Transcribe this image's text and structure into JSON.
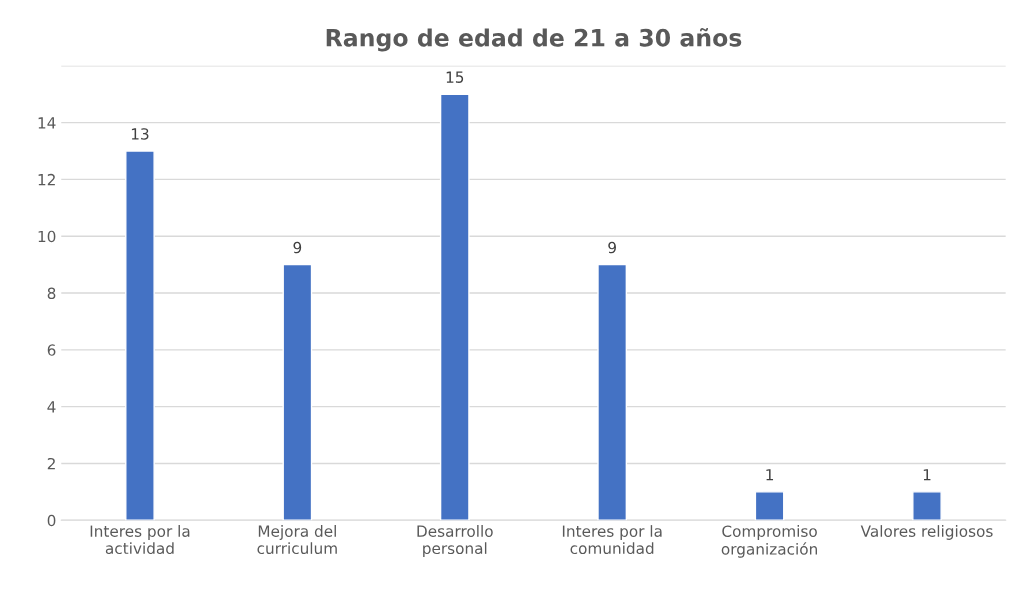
{
  "chart_data": {
    "type": "bar",
    "title": "Rango de edad de 21 a 30 años",
    "categories": [
      "Interes por la\nactividad",
      "Mejora del\ncurriculum",
      "Desarrollo\npersonal",
      "Interes por la\ncomunidad",
      "Compromiso\norganización",
      "Valores religiosos"
    ],
    "values": [
      13,
      9,
      15,
      9,
      1,
      1
    ],
    "color": "#4472c4",
    "ylim": [
      0,
      16
    ],
    "yticks": [
      0,
      2,
      4,
      6,
      8,
      10,
      12,
      14,
      {
        "value": 16,
        "label": null
      }
    ],
    "grid": "y",
    "data_labels": true
  }
}
